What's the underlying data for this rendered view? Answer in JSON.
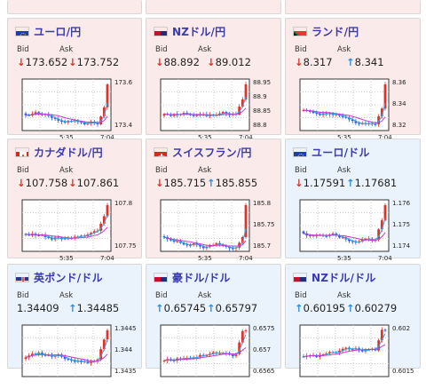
{
  "colors": {
    "down": "#d9372e",
    "up": "#2e8fd9",
    "pair_text": "#3a3ab0"
  },
  "labels": {
    "bid": "Bid",
    "ask": "Ask"
  },
  "cards": [
    {
      "id": "eur-jpy",
      "pair": "ユーロ/円",
      "flag": "eu-flag-icon",
      "bid": "173.652",
      "ask": "173.752",
      "bid_dir": "down",
      "ask_dir": "down",
      "y_ticks": [
        "173.6",
        "173.4"
      ],
      "x_ticks": [
        "5:35",
        "7:04"
      ]
    },
    {
      "id": "nzd-jpy",
      "pair": "NZドル/円",
      "flag": "nz-flag-icon",
      "bid": "88.892",
      "ask": "89.012",
      "bid_dir": "down",
      "ask_dir": "down",
      "y_ticks": [
        "88.95",
        "88.9",
        "88.85",
        "88.8"
      ],
      "x_ticks": [
        "5:35",
        "7:04"
      ]
    },
    {
      "id": "zar-jpy",
      "pair": "ランド/円",
      "flag": "za-flag-icon",
      "bid": "8.317",
      "ask": "8.341",
      "bid_dir": "down",
      "ask_dir": "up",
      "y_ticks": [
        "8.36",
        "8.34",
        "8.32"
      ],
      "x_ticks": [
        "5:35",
        "7:04"
      ]
    },
    {
      "id": "cad-jpy",
      "pair": "カナダドル/円",
      "flag": "ca-flag-icon",
      "bid": "107.758",
      "ask": "107.861",
      "bid_dir": "down",
      "ask_dir": "down",
      "y_ticks": [
        "107.8",
        "107.75"
      ],
      "x_ticks": [
        "5:35",
        "7:04"
      ]
    },
    {
      "id": "chf-jpy",
      "pair": "スイスフラン/円",
      "flag": "ch-flag-icon",
      "bid": "185.715",
      "ask": "185.855",
      "bid_dir": "down",
      "ask_dir": "up",
      "y_ticks": [
        "185.8",
        "185.75",
        "185.7"
      ],
      "x_ticks": [
        "5:35",
        "7:04"
      ]
    },
    {
      "id": "eur-usd",
      "pair": "ユーロ/ドル",
      "flag": "eu-us-flag-icon",
      "bid": "1.17591",
      "ask": "1.17681",
      "bid_dir": "down",
      "ask_dir": "up",
      "y_ticks": [
        "1.176",
        "1.175",
        "1.174"
      ],
      "x_ticks": [
        "5:35",
        "7:04"
      ]
    },
    {
      "id": "gbp-usd",
      "pair": "英ポンド/ドル",
      "flag": "gb-us-flag-icon",
      "bid": "1.34409",
      "ask": "1.34485",
      "bid_dir": "none",
      "ask_dir": "up",
      "y_ticks": [
        "1.3445",
        "1.344",
        "1.3435"
      ],
      "x_ticks": []
    },
    {
      "id": "aud-usd",
      "pair": "豪ドル/ドル",
      "flag": "au-us-flag-icon",
      "bid": "0.65745",
      "ask": "0.65797",
      "bid_dir": "up",
      "ask_dir": "up",
      "y_ticks": [
        "0.6575",
        "0.657",
        "0.6565"
      ],
      "x_ticks": []
    },
    {
      "id": "nzd-usd",
      "pair": "NZドル/ドル",
      "flag": "nz-us-flag-icon",
      "bid": "0.60195",
      "ask": "0.60279",
      "bid_dir": "up",
      "ask_dir": "up",
      "y_ticks": [
        "0.602",
        "0.6015"
      ],
      "x_ticks": []
    }
  ]
}
